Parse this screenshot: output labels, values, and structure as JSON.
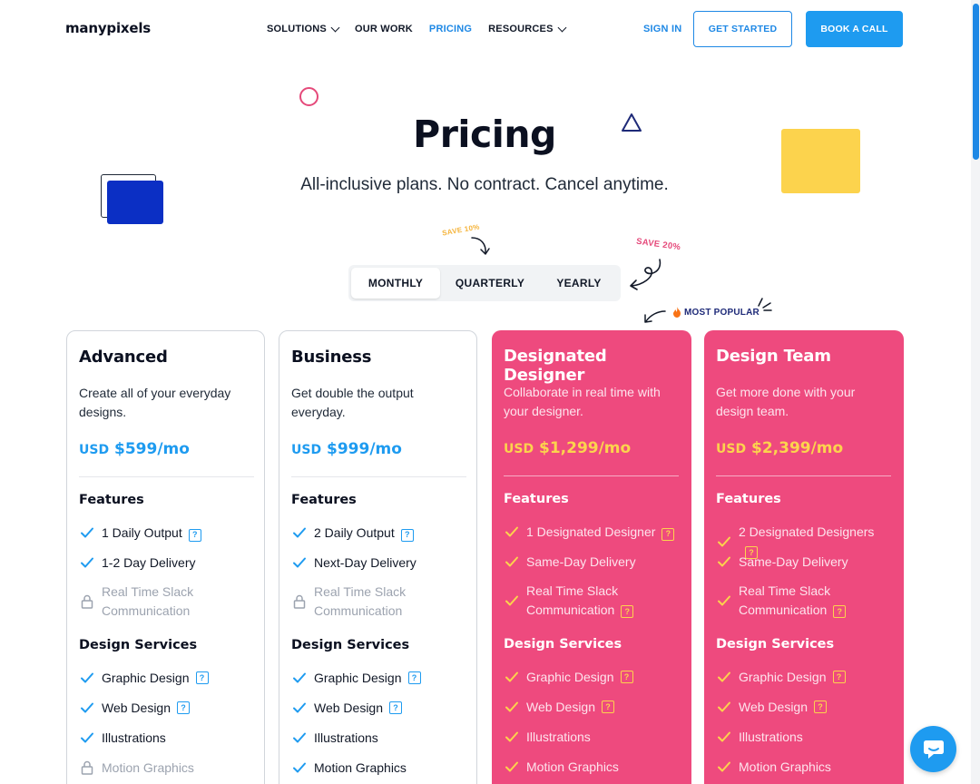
{
  "header": {
    "logo": "manypixels",
    "nav": [
      {
        "label": "SOLUTIONS",
        "dropdown": true,
        "active": false
      },
      {
        "label": "OUR WORK",
        "dropdown": false,
        "active": false
      },
      {
        "label": "PRICING",
        "dropdown": false,
        "active": true
      },
      {
        "label": "RESOURCES",
        "dropdown": true,
        "active": false
      }
    ],
    "sign_in": "SIGN IN",
    "get_started": "GET STARTED",
    "book_call": "BOOK A CALL"
  },
  "hero": {
    "title": "Pricing",
    "subtitle": "All-inclusive plans. No contract. Cancel anytime.",
    "save10": "SAVE 10%",
    "save20": "SAVE 20%",
    "most_popular": "MOST POPULAR",
    "billing_options": [
      "MONTHLY",
      "QUARTERLY",
      "YEARLY"
    ],
    "selected_billing": "MONTHLY"
  },
  "colors": {
    "accent_blue": "#1e9bf0",
    "card_pink": "#ee4a7e",
    "price_yellow": "#fcd34d"
  },
  "plans": [
    {
      "name": "Advanced",
      "desc": "Create all of your everyday designs.",
      "currency": "USD",
      "price": "$599/mo",
      "style": "light",
      "features_heading": "Features",
      "features": [
        {
          "text": "1 Daily Output",
          "state": "on",
          "help": true
        },
        {
          "text": "1-2 Day Delivery",
          "state": "on",
          "help": false
        },
        {
          "text": "Real Time Slack Communication",
          "state": "off",
          "help": false
        }
      ],
      "services_heading": "Design Services",
      "services": [
        {
          "text": "Graphic Design",
          "state": "on",
          "help": true
        },
        {
          "text": "Web Design",
          "state": "on",
          "help": true
        },
        {
          "text": "Illustrations",
          "state": "on",
          "help": false
        },
        {
          "text": "Motion Graphics",
          "state": "off",
          "help": false
        }
      ]
    },
    {
      "name": "Business",
      "desc": "Get double the output everyday.",
      "currency": "USD",
      "price": "$999/mo",
      "style": "light",
      "features_heading": "Features",
      "features": [
        {
          "text": "2 Daily Output",
          "state": "on",
          "help": true
        },
        {
          "text": "Next-Day Delivery",
          "state": "on",
          "help": false
        },
        {
          "text": "Real Time Slack Communication",
          "state": "off",
          "help": false
        }
      ],
      "services_heading": "Design Services",
      "services": [
        {
          "text": "Graphic Design",
          "state": "on",
          "help": true
        },
        {
          "text": "Web Design",
          "state": "on",
          "help": true
        },
        {
          "text": "Illustrations",
          "state": "on",
          "help": false
        },
        {
          "text": "Motion Graphics",
          "state": "on",
          "help": false
        }
      ]
    },
    {
      "name": "Designated Designer",
      "desc": "Collaborate in real time with your designer.",
      "currency": "USD",
      "price": "$1,299/mo",
      "style": "pink",
      "features_heading": "Features",
      "features": [
        {
          "text": "1 Designated Designer",
          "state": "on",
          "help": true
        },
        {
          "text": "Same-Day Delivery",
          "state": "on",
          "help": false
        },
        {
          "text": "Real Time Slack Communication",
          "state": "on",
          "help": true
        }
      ],
      "services_heading": "Design Services",
      "services": [
        {
          "text": "Graphic Design",
          "state": "on",
          "help": true
        },
        {
          "text": "Web Design",
          "state": "on",
          "help": true
        },
        {
          "text": "Illustrations",
          "state": "on",
          "help": false
        },
        {
          "text": "Motion Graphics",
          "state": "on",
          "help": false
        }
      ]
    },
    {
      "name": "Design Team",
      "desc": "Get more done with your design team.",
      "currency": "USD",
      "price": "$2,399/mo",
      "style": "pink",
      "features_heading": "Features",
      "features": [
        {
          "text": "2 Designated Designers",
          "state": "on",
          "help": true
        },
        {
          "text": "Same-Day Delivery",
          "state": "on",
          "help": false
        },
        {
          "text": "Real Time Slack Communication",
          "state": "on",
          "help": true
        }
      ],
      "services_heading": "Design Services",
      "services": [
        {
          "text": "Graphic Design",
          "state": "on",
          "help": true
        },
        {
          "text": "Web Design",
          "state": "on",
          "help": true
        },
        {
          "text": "Illustrations",
          "state": "on",
          "help": false
        },
        {
          "text": "Motion Graphics",
          "state": "on",
          "help": false
        }
      ]
    }
  ],
  "help_glyph": "?"
}
